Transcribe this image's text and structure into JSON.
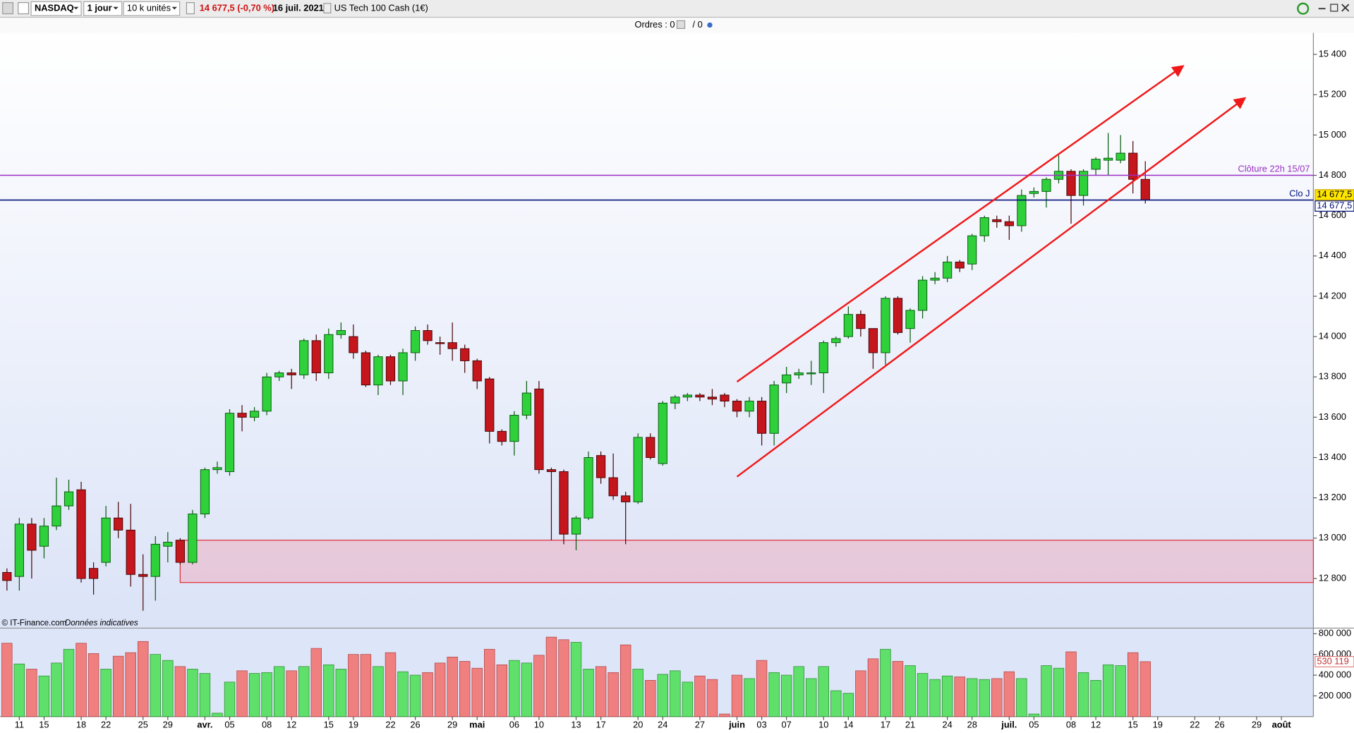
{
  "toolbar": {
    "symbol": "NASDAQ",
    "period": "1 jour",
    "size": "10 k unités",
    "quote": "14 677,5 (-0,70 %)",
    "date": "16 juil. 2021",
    "instrument": "US Tech 100 Cash (1€)"
  },
  "orders": {
    "label": "Ordres : 0",
    "suffix": "/ 0"
  },
  "footer": {
    "copyright": "© IT-Finance.com",
    "note": "Données indicatives"
  },
  "chart_data": [
    {
      "type": "candlestick",
      "categories": [
        null,
        "11",
        null,
        "15",
        null,
        null,
        "18",
        null,
        "22",
        null,
        null,
        "25",
        null,
        "29",
        null,
        null,
        "avr.",
        null,
        "05",
        null,
        null,
        "08",
        null,
        "12",
        null,
        null,
        "15",
        null,
        "19",
        null,
        null,
        "22",
        null,
        "26",
        null,
        null,
        "29",
        null,
        "mai",
        null,
        null,
        "06",
        null,
        "10",
        null,
        null,
        "13",
        null,
        "17",
        null,
        null,
        "20",
        null,
        "24",
        null,
        null,
        "27",
        null,
        null,
        "juin",
        null,
        "03",
        null,
        "07",
        null,
        null,
        "10",
        null,
        "14",
        null,
        null,
        "17",
        null,
        "21",
        null,
        null,
        "24",
        null,
        "28",
        null,
        null,
        "juil.",
        null,
        "05",
        null,
        null,
        "08",
        null,
        "12",
        null,
        null,
        "15",
        null,
        "19",
        null,
        null,
        "22",
        null,
        "26",
        null,
        null,
        "29",
        null,
        "août"
      ],
      "open": [
        12830,
        12810,
        13070,
        12960,
        13060,
        13160,
        13240,
        12850,
        12880,
        13100,
        13040,
        12820,
        12810,
        12960,
        12990,
        12880,
        13120,
        13340,
        13330,
        13620,
        13600,
        13630,
        13800,
        13820,
        13810,
        13980,
        13820,
        14010,
        14000,
        13920,
        13760,
        13900,
        13780,
        13920,
        14030,
        13970,
        13970,
        13940,
        13880,
        13790,
        13530,
        13480,
        13610,
        13740,
        13340,
        13330,
        13020,
        13100,
        13410,
        13300,
        13210,
        13180,
        13500,
        13370,
        13670,
        13700,
        13710,
        13700,
        13710,
        13680,
        13630,
        13680,
        13520,
        13770,
        13810,
        13815,
        13820,
        13970,
        14000,
        14110,
        14040,
        13920,
        14190,
        14040,
        14130,
        14280,
        14290,
        14370,
        14360,
        14500,
        14580,
        14570,
        14550,
        14710,
        14720,
        14780,
        14820,
        14700,
        14830,
        14875,
        14875,
        14910,
        14780,
        null,
        null,
        null,
        null,
        null,
        null,
        null,
        null,
        null,
        null,
        null
      ],
      "high": [
        12850,
        13100,
        13100,
        13100,
        13300,
        13290,
        13280,
        12880,
        13160,
        13180,
        13170,
        12920,
        13010,
        13030,
        13000,
        13140,
        13350,
        13380,
        13640,
        13660,
        13650,
        13820,
        13830,
        13840,
        13990,
        14010,
        14040,
        14070,
        14060,
        13930,
        13910,
        13910,
        13940,
        14050,
        14060,
        14000,
        14070,
        13960,
        13890,
        13800,
        13540,
        13630,
        13780,
        13780,
        13350,
        13340,
        13110,
        13430,
        13430,
        13420,
        13230,
        13520,
        13520,
        13680,
        13710,
        13720,
        13720,
        13740,
        13720,
        13690,
        13700,
        13700,
        13780,
        13850,
        13840,
        13880,
        13980,
        14000,
        14150,
        14130,
        14040,
        14200,
        14200,
        14140,
        14300,
        14320,
        14400,
        14380,
        14510,
        14600,
        14600,
        14600,
        14730,
        14740,
        14790,
        14900,
        14830,
        14830,
        14890,
        15010,
        15000,
        14970,
        14870,
        null,
        null,
        null,
        null,
        null,
        null,
        null,
        null,
        null,
        null,
        null
      ],
      "low": [
        12740,
        12740,
        12800,
        12900,
        13040,
        13140,
        12780,
        12720,
        12860,
        13000,
        12760,
        12640,
        12690,
        12880,
        12870,
        12870,
        13100,
        13320,
        13310,
        13530,
        13580,
        13610,
        13780,
        13740,
        13790,
        13780,
        13790,
        13990,
        13890,
        13750,
        13710,
        13760,
        13710,
        13880,
        13960,
        13910,
        13880,
        13820,
        13740,
        13470,
        13460,
        13410,
        13590,
        13320,
        12990,
        12970,
        12940,
        13090,
        13270,
        13190,
        12970,
        13170,
        13390,
        13360,
        13640,
        13680,
        13680,
        13660,
        13650,
        13600,
        13600,
        13460,
        13460,
        13720,
        13790,
        13760,
        13720,
        13950,
        13990,
        14000,
        13840,
        13860,
        14010,
        13970,
        14090,
        14260,
        14270,
        14320,
        14330,
        14470,
        14540,
        14480,
        14520,
        14690,
        14640,
        14760,
        14560,
        14650,
        14800,
        14800,
        14860,
        14710,
        14660,
        null,
        null,
        null,
        null,
        null,
        null,
        null,
        null,
        null,
        null,
        null
      ],
      "close": [
        12790,
        13070,
        12940,
        13060,
        13160,
        13230,
        12800,
        12800,
        13100,
        13040,
        12820,
        12810,
        12970,
        12980,
        12880,
        13120,
        13340,
        13350,
        13620,
        13600,
        13630,
        13800,
        13820,
        13810,
        13980,
        13820,
        14010,
        14030,
        13920,
        13760,
        13900,
        13780,
        13920,
        14030,
        13980,
        13965,
        13940,
        13880,
        13780,
        13530,
        13480,
        13610,
        13720,
        13340,
        13330,
        13020,
        13100,
        13400,
        13300,
        13210,
        13180,
        13500,
        13400,
        13670,
        13700,
        13710,
        13700,
        13690,
        13680,
        13630,
        13680,
        13520,
        13760,
        13810,
        13820,
        13820,
        13970,
        13990,
        14110,
        14040,
        13920,
        14190,
        14020,
        14130,
        14280,
        14290,
        14370,
        14340,
        14500,
        14590,
        14570,
        14550,
        14700,
        14720,
        14780,
        14820,
        14700,
        14820,
        14880,
        14885,
        14910,
        14780,
        14677.5,
        null,
        null,
        null,
        null,
        null,
        null,
        null,
        null,
        null,
        null,
        null
      ],
      "last_label": "14 677,5",
      "colors": {
        "up": "#2ed13a",
        "down": "#c4161c",
        "up_edge": "#0a5a10",
        "down_edge": "#4a0608"
      },
      "ylim": [
        12556,
        15507
      ],
      "yticks": [
        {
          "value": 12800,
          "label": "12 800"
        },
        {
          "value": 13000,
          "label": "13 000"
        },
        {
          "value": 13200,
          "label": "13 200"
        },
        {
          "value": 13400,
          "label": "13 400"
        },
        {
          "value": 13600,
          "label": "13 600"
        },
        {
          "value": 13800,
          "label": "13 800"
        },
        {
          "value": 14000,
          "label": "14 000"
        },
        {
          "value": 14200,
          "label": "14 200"
        },
        {
          "value": 14400,
          "label": "14 400"
        },
        {
          "value": 14600,
          "label": "14 600"
        },
        {
          "value": 14800,
          "label": "14 800"
        },
        {
          "value": 15000,
          "label": "15 000"
        },
        {
          "value": 15200,
          "label": "15 200"
        },
        {
          "value": 15400,
          "label": "15 400"
        }
      ],
      "hlines": [
        {
          "value": 14800,
          "label": "Clôture 22h 15/07",
          "color": "#9b2fc4"
        },
        {
          "value": 14677.5,
          "label": "Clo J",
          "color": "#00107a",
          "badge": "14 677,5"
        }
      ],
      "zones": [
        {
          "from": 12780,
          "to": 12990,
          "start": 14,
          "color": "#e8c3d5",
          "edge": "#e0303a"
        }
      ],
      "trendlines": [
        {
          "x": [
            59,
            95
          ],
          "y": [
            13776,
            15340
          ],
          "color": "#f01818"
        },
        {
          "x": [
            59,
            100
          ],
          "y": [
            13305,
            15181
          ],
          "color": "#f01818"
        }
      ]
    },
    {
      "type": "bar",
      "values": [
        708000,
        508000,
        458000,
        392000,
        517000,
        650000,
        708000,
        608000,
        458000,
        583000,
        617000,
        725000,
        600000,
        542000,
        483000,
        458000,
        417000,
        33000,
        333000,
        442000,
        417000,
        425000,
        483000,
        442000,
        483000,
        658000,
        500000,
        458000,
        600000,
        600000,
        483000,
        617000,
        433000,
        400000,
        425000,
        517000,
        575000,
        533000,
        467000,
        650000,
        500000,
        542000,
        517000,
        592000,
        767000,
        742000,
        717000,
        458000,
        483000,
        425000,
        692000,
        458000,
        350000,
        408000,
        442000,
        333000,
        392000,
        358000,
        25000,
        400000,
        367000,
        542000,
        425000,
        400000,
        483000,
        367000,
        483000,
        250000,
        225000,
        442000,
        558000,
        650000,
        533000,
        492000,
        417000,
        358000,
        392000,
        383000,
        367000,
        358000,
        367000,
        433000,
        367000,
        25000,
        492000,
        467000,
        625000,
        425000,
        350000,
        500000,
        492000,
        617000,
        530119,
        null,
        null,
        null,
        null,
        null,
        null,
        null,
        null,
        null,
        null,
        null
      ],
      "last_label": "530 119",
      "colors": {
        "up": "#5fe06a",
        "down": "#f08080",
        "up_edge": "#2a8a30",
        "down_edge": "#b04040"
      },
      "ylim": [
        0,
        850000
      ],
      "yticks": [
        {
          "value": 200000,
          "label": "200 000"
        },
        {
          "value": 400000,
          "label": "400 000"
        },
        {
          "value": 600000,
          "label": "600 000"
        },
        {
          "value": 800000,
          "label": "800 000"
        }
      ]
    }
  ]
}
